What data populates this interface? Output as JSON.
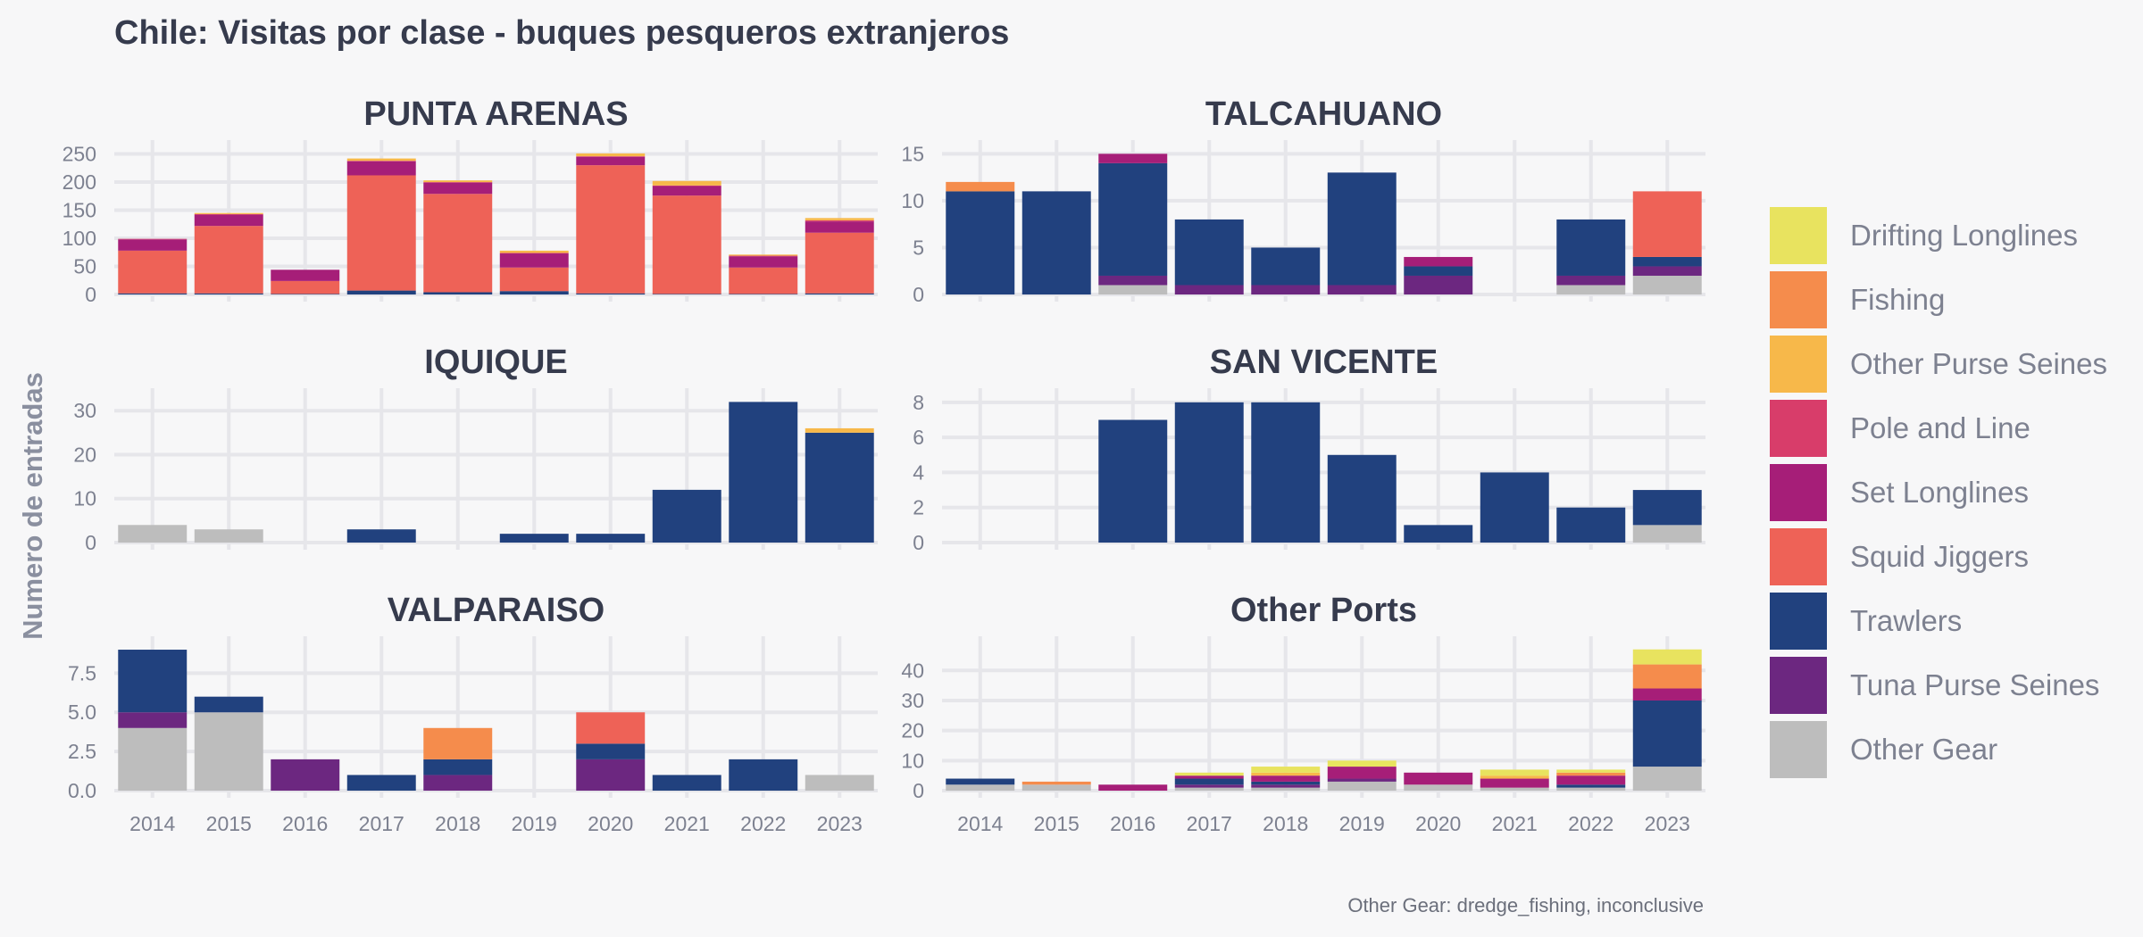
{
  "title": "Chile: Visitas por clase - buques pesqueros extranjeros",
  "ylabel": "Numero de entradas",
  "caption": "Other Gear: dredge_fishing, inconclusive",
  "legend": [
    {
      "key": "drifting_longlines",
      "label": "Drifting Longlines",
      "color": "#e8e35f"
    },
    {
      "key": "fishing",
      "label": "Fishing",
      "color": "#f58c4c"
    },
    {
      "key": "other_purse_seines",
      "label": "Other Purse Seines",
      "color": "#f7b84a"
    },
    {
      "key": "pole_and_line",
      "label": "Pole and Line",
      "color": "#d83d6a"
    },
    {
      "key": "set_longlines",
      "label": "Set Longlines",
      "color": "#a61e78"
    },
    {
      "key": "squid_jiggers",
      "label": "Squid Jiggers",
      "color": "#ee6257"
    },
    {
      "key": "trawlers",
      "label": "Trawlers",
      "color": "#21417e"
    },
    {
      "key": "tuna_purse_seines",
      "label": "Tuna Purse Seines",
      "color": "#6c2780"
    },
    {
      "key": "other_gear",
      "label": "Other Gear",
      "color": "#bdbdbd"
    }
  ],
  "chart_data": {
    "type": "bar",
    "stacked": true,
    "legend_position": "right",
    "grid": true,
    "categories": [
      "2014",
      "2015",
      "2016",
      "2017",
      "2018",
      "2019",
      "2020",
      "2021",
      "2022",
      "2023"
    ],
    "stack_order": [
      "other_gear",
      "tuna_purse_seines",
      "trawlers",
      "squid_jiggers",
      "set_longlines",
      "pole_and_line",
      "other_purse_seines",
      "fishing",
      "drifting_longlines"
    ],
    "panels": [
      {
        "title": "PUNTA ARENAS",
        "ylim": [
          0,
          262
        ],
        "yticks": [
          0,
          50,
          100,
          150,
          200,
          250
        ],
        "ytick_labels": [
          "0",
          "50",
          "100",
          "150",
          "200",
          "250"
        ],
        "series": {
          "trawlers": [
            2,
            2,
            1,
            7,
            4,
            6,
            2,
            1,
            1,
            2
          ],
          "squid_jiggers": [
            76,
            120,
            23,
            205,
            175,
            42,
            228,
            175,
            47,
            108
          ],
          "set_longlines": [
            20,
            20,
            20,
            25,
            20,
            25,
            15,
            17,
            20,
            20
          ],
          "pole_and_line": [
            1,
            1,
            0,
            1,
            1,
            1,
            1,
            1,
            1,
            2
          ],
          "other_purse_seines": [
            0,
            2,
            0,
            4,
            3,
            4,
            5,
            8,
            2,
            4
          ]
        }
      },
      {
        "title": "TALCAHUANO",
        "ylim": [
          0,
          15.7
        ],
        "yticks": [
          0,
          5,
          10,
          15
        ],
        "ytick_labels": [
          "0",
          "5",
          "10",
          "15"
        ],
        "series": {
          "other_gear": [
            0,
            0,
            1,
            0,
            0,
            0,
            0,
            0,
            1,
            2
          ],
          "tuna_purse_seines": [
            0,
            0,
            1,
            1,
            1,
            1,
            2,
            0,
            1,
            1
          ],
          "trawlers": [
            11,
            11,
            12,
            7,
            4,
            12,
            1,
            0,
            6,
            1
          ],
          "squid_jiggers": [
            0,
            0,
            0,
            0,
            0,
            0,
            0,
            0,
            0,
            7
          ],
          "set_longlines": [
            0,
            0,
            1,
            0,
            0,
            0,
            1,
            0,
            0,
            0
          ],
          "fishing": [
            1,
            0,
            0,
            0,
            0,
            0,
            0,
            0,
            0,
            0
          ]
        }
      },
      {
        "title": "IQUIQUE",
        "ylim": [
          0,
          33.5
        ],
        "yticks": [
          0,
          10,
          20,
          30
        ],
        "ytick_labels": [
          "0",
          "10",
          "20",
          "30"
        ],
        "series": {
          "other_gear": [
            4,
            3,
            0,
            0,
            0,
            0,
            0,
            0,
            0,
            0
          ],
          "trawlers": [
            0,
            0,
            0,
            3,
            0,
            2,
            2,
            12,
            32,
            25
          ],
          "other_purse_seines": [
            0,
            0,
            0,
            0,
            0,
            0,
            0,
            0,
            0,
            1
          ]
        }
      },
      {
        "title": "SAN VICENTE",
        "ylim": [
          0,
          8.4
        ],
        "yticks": [
          0,
          2,
          4,
          6,
          8
        ],
        "ytick_labels": [
          "0",
          "2",
          "4",
          "6",
          "8"
        ],
        "series": {
          "other_gear": [
            0,
            0,
            0,
            0,
            0,
            0,
            0,
            0,
            0,
            1
          ],
          "trawlers": [
            0,
            0,
            7,
            8,
            8,
            5,
            1,
            4,
            2,
            2
          ]
        }
      },
      {
        "title": "VALPARAISO",
        "ylim": [
          0,
          9.4
        ],
        "yticks": [
          0,
          2.5,
          5,
          7.5
        ],
        "ytick_labels": [
          "0.0",
          "2.5",
          "5.0",
          "7.5"
        ],
        "series": {
          "other_gear": [
            4,
            5,
            0,
            0,
            0,
            0,
            0,
            0,
            0,
            1
          ],
          "tuna_purse_seines": [
            1,
            0,
            2,
            0,
            1,
            0,
            2,
            0,
            0,
            0
          ],
          "trawlers": [
            4,
            1,
            0,
            1,
            1,
            0,
            1,
            1,
            2,
            0
          ],
          "squid_jiggers": [
            0,
            0,
            0,
            0,
            0,
            0,
            2,
            0,
            0,
            0
          ],
          "fishing": [
            0,
            0,
            0,
            0,
            2,
            0,
            0,
            0,
            0,
            0
          ]
        }
      },
      {
        "title": "Other Ports",
        "ylim": [
          0,
          49
        ],
        "yticks": [
          0,
          10,
          20,
          30,
          40
        ],
        "ytick_labels": [
          "0",
          "10",
          "20",
          "30",
          "40"
        ],
        "series": {
          "other_gear": [
            2,
            2,
            0,
            1,
            1,
            3,
            2,
            1,
            1,
            8
          ],
          "tuna_purse_seines": [
            0,
            0,
            0,
            1,
            1,
            1,
            0,
            0,
            0,
            0
          ],
          "trawlers": [
            2,
            0,
            0,
            2,
            1,
            0,
            0,
            0,
            1,
            22
          ],
          "set_longlines": [
            0,
            0,
            2,
            1,
            2,
            4,
            4,
            3,
            3,
            4
          ],
          "other_purse_seines": [
            0,
            0,
            0,
            0,
            1,
            0,
            0,
            1,
            0,
            0
          ],
          "fishing": [
            0,
            1,
            0,
            0,
            0,
            0,
            0,
            0,
            1,
            8
          ],
          "drifting_longlines": [
            0,
            0,
            0,
            1,
            2,
            2,
            0,
            2,
            1,
            5
          ]
        }
      }
    ]
  }
}
